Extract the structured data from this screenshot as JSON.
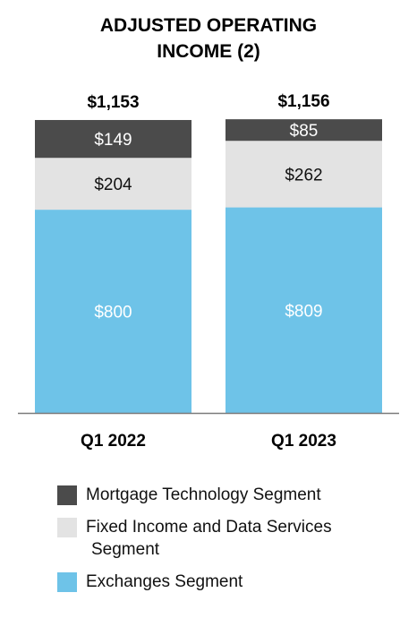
{
  "chart_data": {
    "type": "bar",
    "stacked": true,
    "title_lines": [
      "ADJUSTED OPERATING",
      "INCOME (2)"
    ],
    "categories": [
      "Q1 2022",
      "Q1 2023"
    ],
    "totals": [
      "$1,153",
      "$1,156"
    ],
    "series": [
      {
        "name": "Exchanges Segment",
        "values": [
          800,
          809
        ],
        "labels": [
          "$800",
          "$809"
        ],
        "color": "#6EC3E8",
        "label_color": "#ffffff"
      },
      {
        "name": "Fixed Income and Data Services Segment",
        "values": [
          204,
          262
        ],
        "labels": [
          "$204",
          "$262"
        ],
        "color": "#E3E3E3",
        "label_color": "#111111"
      },
      {
        "name": "Mortgage Technology Segment",
        "values": [
          149,
          85
        ],
        "labels": [
          "$149",
          "$85"
        ],
        "color": "#4B4B4B",
        "label_color": "#ffffff"
      }
    ],
    "ylim": [
      0,
      1160
    ],
    "grid": false,
    "legend_position": "bottom",
    "legend": {
      "items": [
        {
          "name": "Mortgage Technology Segment",
          "lines": [
            "Mortgage Technology Segment"
          ],
          "color": "#4B4B4B"
        },
        {
          "name": "Fixed Income and Data Services Segment",
          "lines": [
            "Fixed Income and Data Services",
            "Segment"
          ],
          "color": "#E3E3E3"
        },
        {
          "name": "Exchanges Segment",
          "lines": [
            "Exchanges Segment"
          ],
          "color": "#6EC3E8"
        }
      ]
    }
  }
}
